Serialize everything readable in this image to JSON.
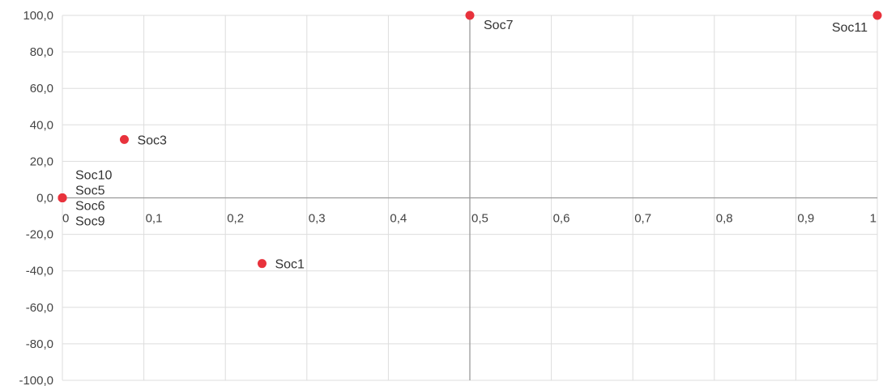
{
  "chart_data": {
    "type": "scatter",
    "title": "",
    "xlabel": "",
    "ylabel": "",
    "xlim": [
      0,
      1
    ],
    "ylim": [
      -100,
      100
    ],
    "x_ticks": [
      {
        "value": 0,
        "label": "0"
      },
      {
        "value": 0.1,
        "label": "0,1"
      },
      {
        "value": 0.2,
        "label": "0,2"
      },
      {
        "value": 0.3,
        "label": "0,3"
      },
      {
        "value": 0.4,
        "label": "0,4"
      },
      {
        "value": 0.5,
        "label": "0,5"
      },
      {
        "value": 0.6,
        "label": "0,6"
      },
      {
        "value": 0.7,
        "label": "0,7"
      },
      {
        "value": 0.8,
        "label": "0,8"
      },
      {
        "value": 0.9,
        "label": "0,9"
      },
      {
        "value": 1,
        "label": "1"
      }
    ],
    "y_ticks": [
      {
        "value": 100,
        "label": "100,0"
      },
      {
        "value": 80,
        "label": "80,0"
      },
      {
        "value": 60,
        "label": "60,0"
      },
      {
        "value": 40,
        "label": "40,0"
      },
      {
        "value": 20,
        "label": "20,0"
      },
      {
        "value": 0,
        "label": "0,0"
      },
      {
        "value": -20,
        "label": "-20,0"
      },
      {
        "value": -40,
        "label": "-40,0"
      },
      {
        "value": -60,
        "label": "-60,0"
      },
      {
        "value": -80,
        "label": "-80,0"
      },
      {
        "value": -100,
        "label": "-100,0"
      }
    ],
    "reference_lines": {
      "x": 0.5,
      "y": 0
    },
    "grid": true,
    "legend": "none",
    "point_color": "#e8323c",
    "points": [
      {
        "label": "Soc7",
        "x": 0.5,
        "y": 100
      },
      {
        "label": "Soc11",
        "x": 1.0,
        "y": 100
      },
      {
        "label": "Soc3",
        "x": 0.076,
        "y": 32
      },
      {
        "label": "Soc10",
        "x": 0,
        "y": 0
      },
      {
        "label": "Soc5",
        "x": 0,
        "y": 0
      },
      {
        "label": "Soc6",
        "x": 0,
        "y": 0
      },
      {
        "label": "Soc9",
        "x": 0,
        "y": 0
      },
      {
        "label": "Soc1",
        "x": 0.245,
        "y": -36
      }
    ]
  }
}
